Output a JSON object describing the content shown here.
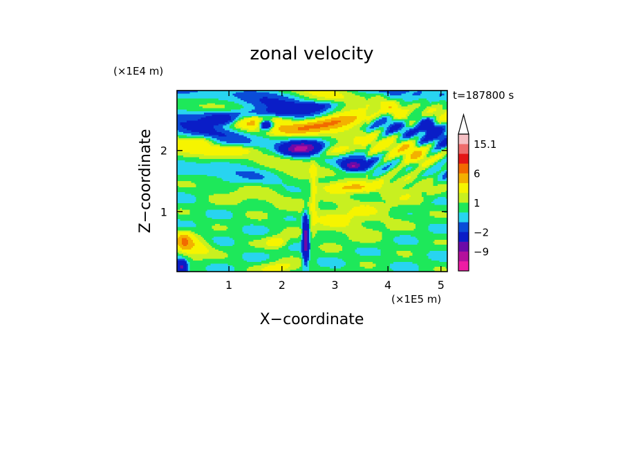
{
  "chart_data": {
    "type": "heatmap",
    "title": "zonal velocity",
    "xlabel": "X−coordinate",
    "ylabel": "Z−coordinate",
    "x_unit": "(×1E5 m)",
    "y_unit": "(×1E4 m)",
    "time_label": "t=187800 s",
    "xlim": [
      0.02,
      5.12
    ],
    "ylim": [
      0.02,
      2.98
    ],
    "x_ticks": [
      1,
      2,
      3,
      4,
      5
    ],
    "y_ticks": [
      1,
      2
    ],
    "x_tick_labels": [
      "1",
      "2",
      "3",
      "4",
      "5"
    ],
    "y_tick_labels": [
      "1",
      "2"
    ],
    "colorbar": {
      "levels": [
        -15.1,
        -12,
        -9,
        -6,
        -2,
        -1,
        0,
        1,
        2,
        4,
        6,
        9,
        12,
        15.1
      ],
      "colors": [
        "#ee1ca4",
        "#b4109c",
        "#6c0aa8",
        "#0a1dc7",
        "#0a4cd8",
        "#28d4f0",
        "#1ee85a",
        "#c8f020",
        "#f6f400",
        "#f3b000",
        "#f26a00",
        "#e41616",
        "#ef6c6c",
        "#f6c0c4"
      ],
      "labels": [
        {
          "value": 15.1,
          "text": "15.1"
        },
        {
          "value": 6,
          "text": "6"
        },
        {
          "value": 1,
          "text": "1"
        },
        {
          "value": -2,
          "text": "−2"
        },
        {
          "value": -9,
          "text": "−9"
        }
      ],
      "extend": "max"
    }
  }
}
